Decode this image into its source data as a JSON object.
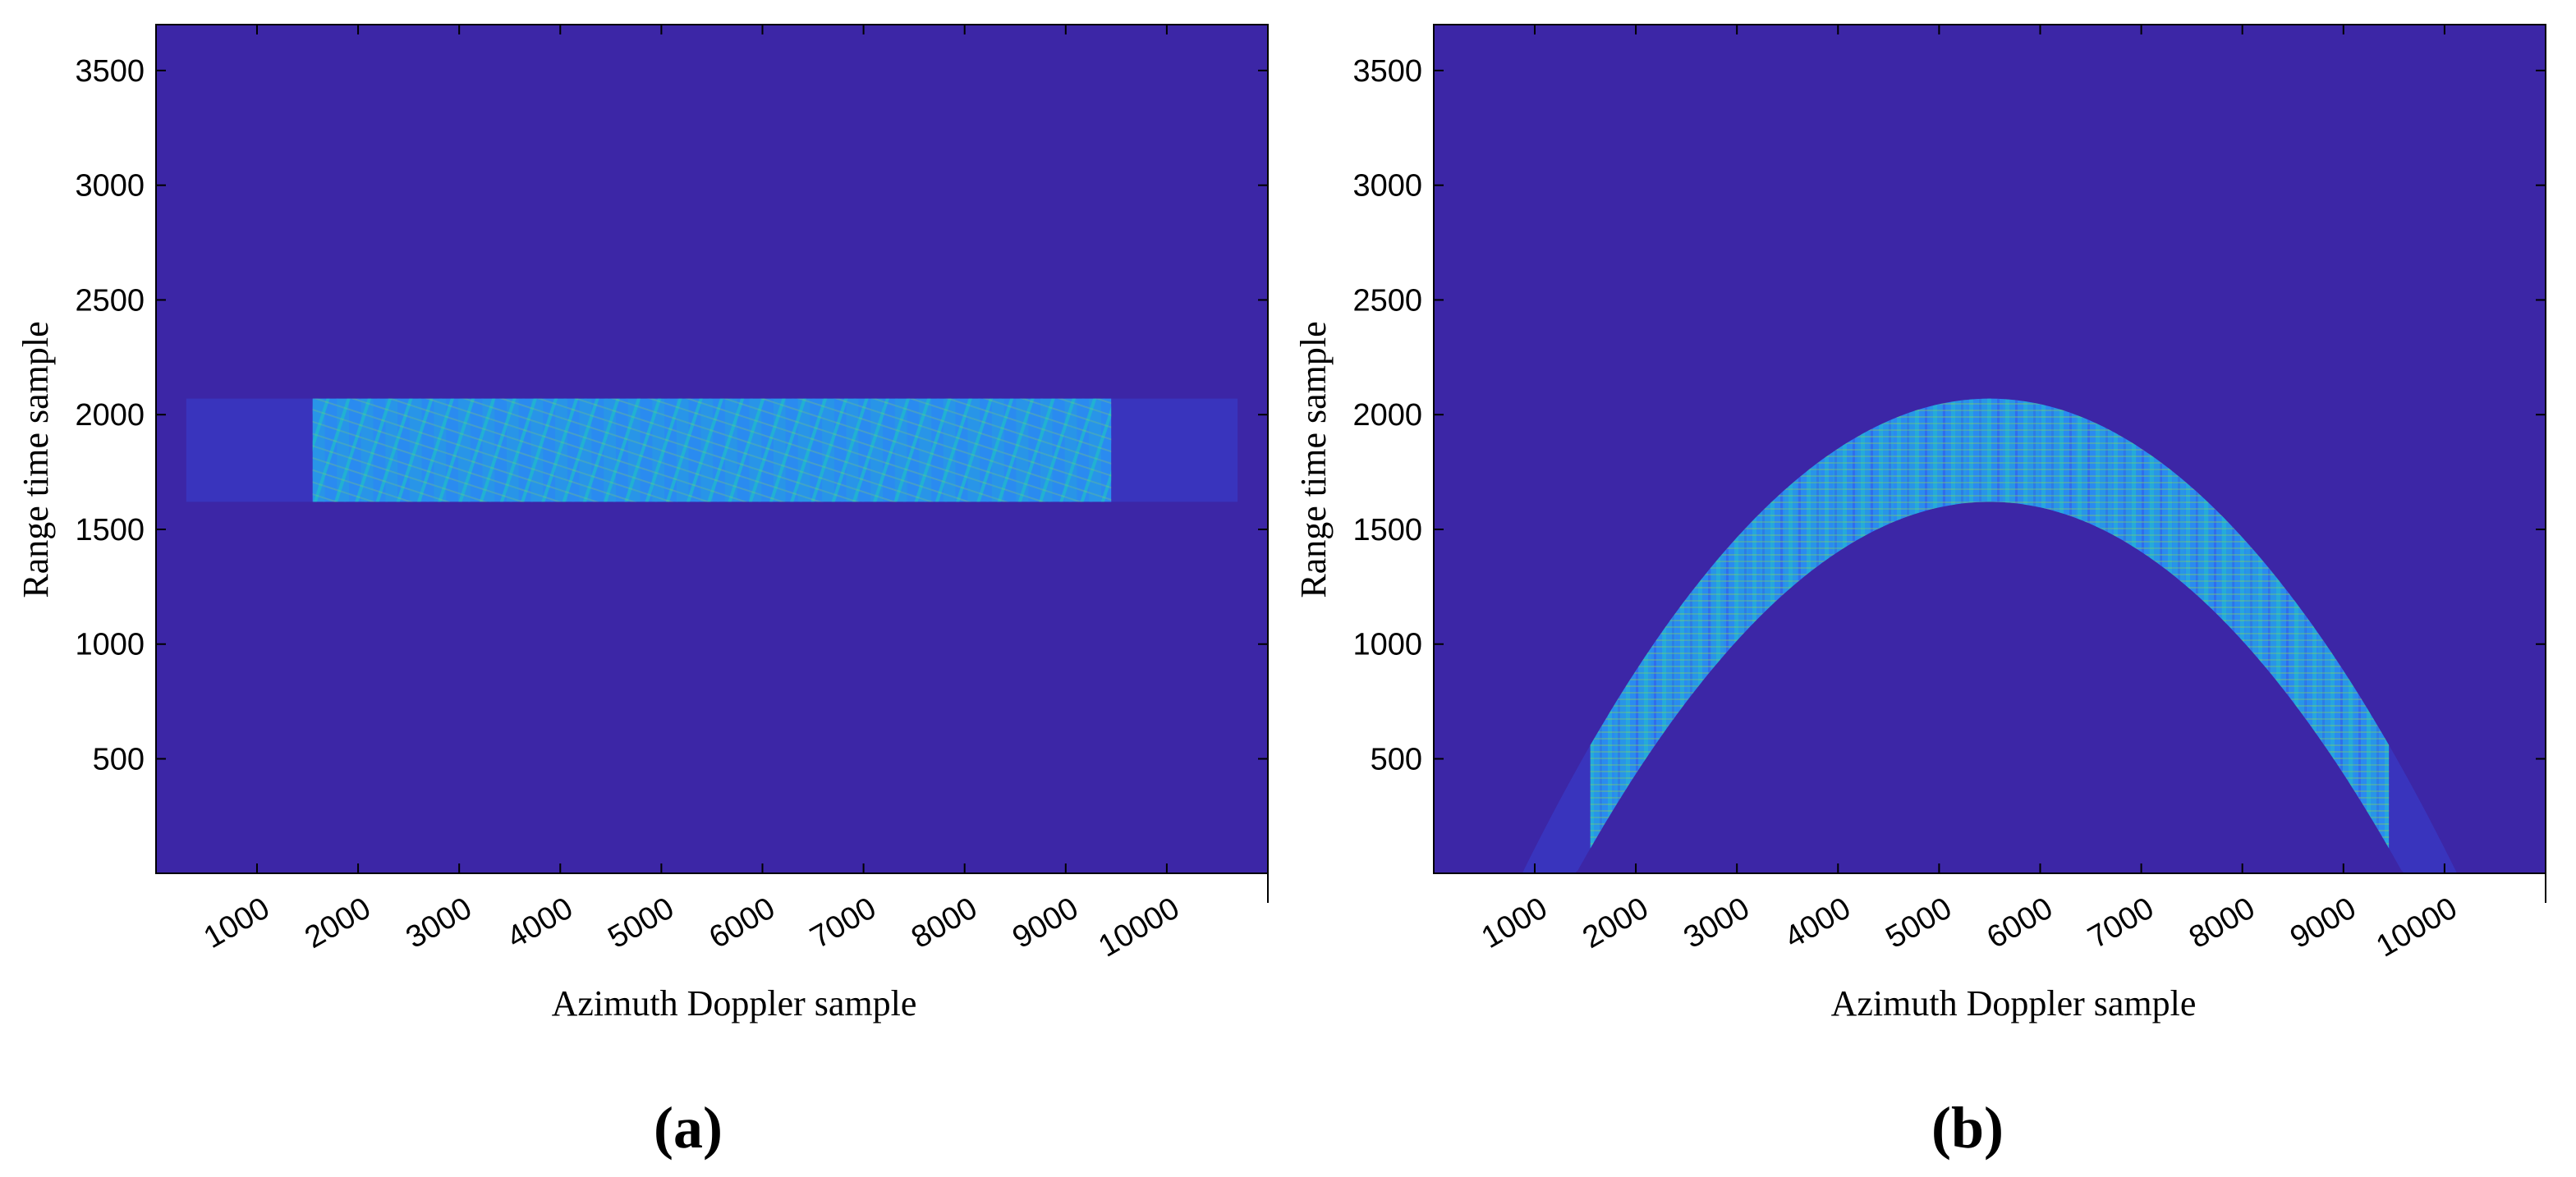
{
  "chart_data": [
    {
      "type": "heatmap",
      "panel_label": "(a)",
      "xlabel": "Azimuth Doppler sample",
      "ylabel": "Range time sample",
      "xlim": [
        1,
        11000
      ],
      "ylim": [
        1,
        3700
      ],
      "xticks": [
        1000,
        2000,
        3000,
        4000,
        5000,
        6000,
        7000,
        8000,
        9000,
        10000
      ],
      "yticks": [
        500,
        1000,
        1500,
        2000,
        2500,
        3000,
        3500
      ],
      "xtick_rotation": -30,
      "background_color": "#3c26a6",
      "grid": false,
      "legend": "none",
      "band": {
        "shape": "rectangle",
        "x_start": 1550,
        "x_end": 9450,
        "fade_start": 300,
        "fade_end": 10700,
        "y_low": 1620,
        "y_high": 2070
      }
    },
    {
      "type": "heatmap",
      "panel_label": "(b)",
      "xlabel": "Azimuth Doppler sample",
      "ylabel": "Range time sample",
      "xlim": [
        1,
        11000
      ],
      "ylim": [
        1,
        3700
      ],
      "xticks": [
        1000,
        2000,
        3000,
        4000,
        5000,
        6000,
        7000,
        8000,
        9000,
        10000
      ],
      "yticks": [
        500,
        1000,
        1500,
        2000,
        2500,
        3000,
        3500
      ],
      "xtick_rotation": -30,
      "background_color": "#3c26a6",
      "grid": false,
      "legend": "none",
      "band": {
        "shape": "parabola",
        "vertex_x": 5500,
        "vertex_upper_y": 2070,
        "vertex_lower_y": 1620,
        "x_start": 1550,
        "x_end": 9450,
        "fade_start": 300,
        "fade_end": 10700,
        "curvature_per_sample_sq": 9.68e-05
      }
    }
  ],
  "colormap": [
    "#3c26a6",
    "#3551e8",
    "#2a8bf0",
    "#20c3c8",
    "#8fd14f"
  ]
}
